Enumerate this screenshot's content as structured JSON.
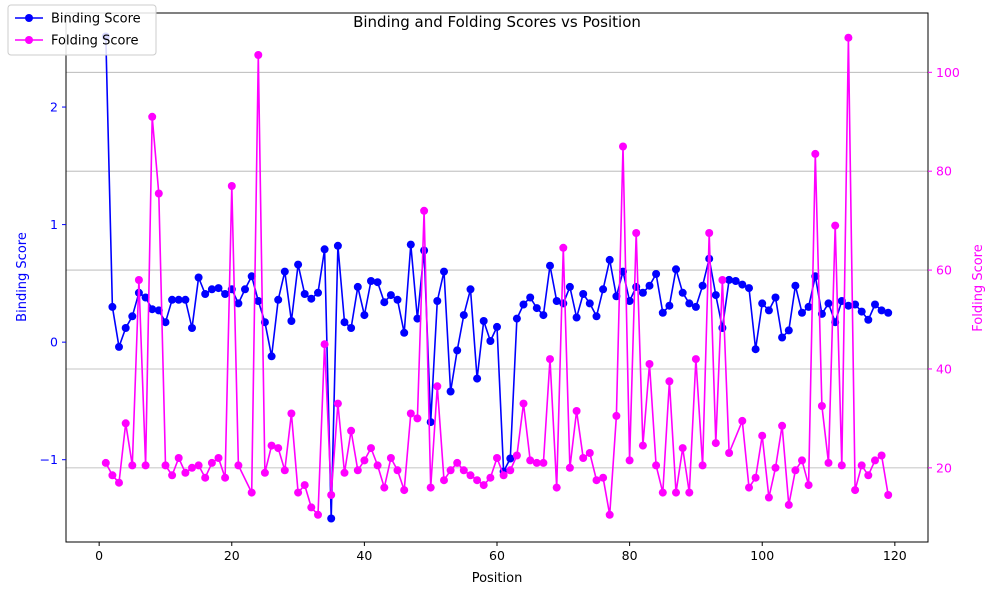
{
  "chart_data": {
    "type": "line",
    "title": "Binding and Folding Scores vs Position",
    "xlabel": "Position",
    "ylabel": "Binding Score",
    "y2label": "Folding Score",
    "xlim": [
      -5,
      125
    ],
    "ylim": [
      -1.7,
      2.8
    ],
    "y2lim": [
      5,
      112
    ],
    "xticks": [
      0,
      20,
      40,
      60,
      80,
      100,
      120
    ],
    "yticks": [
      -1,
      0,
      1,
      2
    ],
    "y2ticks": [
      20,
      40,
      60,
      80,
      100
    ],
    "grid": "horizontal lines at right-axis ticks",
    "legend": "top-left",
    "x": [
      1,
      2,
      3,
      4,
      5,
      6,
      7,
      8,
      9,
      10,
      11,
      12,
      13,
      14,
      15,
      16,
      17,
      18,
      19,
      20,
      21,
      22,
      23,
      24,
      25,
      26,
      27,
      28,
      29,
      30,
      31,
      32,
      33,
      34,
      35,
      36,
      37,
      38,
      39,
      40,
      41,
      42,
      43,
      44,
      45,
      46,
      47,
      48,
      49,
      50,
      51,
      52,
      53,
      54,
      55,
      56,
      57,
      58,
      59,
      60,
      61,
      62,
      63,
      64,
      65,
      66,
      67,
      68,
      69,
      70,
      71,
      72,
      73,
      74,
      75,
      76,
      77,
      78,
      79,
      80,
      81,
      82,
      83,
      84,
      85,
      86,
      87,
      88,
      89,
      90,
      91,
      92,
      93,
      94,
      95,
      96,
      97,
      98,
      99,
      100,
      101,
      102,
      103,
      104,
      105,
      106,
      107,
      108,
      109,
      110,
      111,
      112,
      113,
      114,
      115,
      116,
      117,
      118,
      119
    ],
    "series": [
      {
        "name": "Binding Score",
        "axis": "left",
        "color": "#0000ff",
        "values": [
          2.6,
          0.3,
          -0.04,
          0.12,
          0.22,
          0.42,
          0.38,
          0.28,
          0.27,
          0.17,
          0.36,
          0.36,
          0.36,
          0.12,
          0.55,
          0.41,
          0.45,
          0.46,
          0.41,
          0.45,
          0.33,
          0.45,
          0.56,
          0.35,
          0.17,
          -0.12,
          0.36,
          0.6,
          0.18,
          0.66,
          0.41,
          0.37,
          0.42,
          0.79,
          -1.5,
          0.82,
          0.17,
          0.12,
          0.47,
          0.23,
          0.52,
          0.51,
          0.34,
          0.4,
          0.36,
          0.08,
          0.83,
          0.2,
          0.78,
          -0.68,
          0.35,
          0.6,
          -0.42,
          -0.07,
          0.23,
          0.45,
          -0.31,
          0.18,
          0.01,
          0.13,
          -1.1,
          -0.99,
          0.2,
          0.32,
          0.38,
          0.29,
          0.23,
          0.65,
          0.35,
          0.33,
          0.47,
          0.21,
          0.41,
          0.33,
          0.22,
          0.45,
          0.7,
          0.39,
          0.6,
          0.35,
          0.47,
          0.42,
          0.48,
          0.58,
          0.25,
          0.31,
          0.62,
          0.42,
          0.33,
          0.3,
          0.48,
          0.71,
          0.4,
          0.12,
          0.53,
          0.52,
          0.49,
          0.46,
          -0.06,
          0.33,
          0.27,
          0.38,
          0.04,
          0.1,
          0.48,
          0.25,
          0.3,
          0.56,
          0.24,
          0.33,
          0.17,
          0.35,
          0.31,
          0.32,
          0.26,
          0.19,
          0.32,
          0.27,
          0.25
        ]
      },
      {
        "name": "Folding Score",
        "axis": "right",
        "color": "#ff00ff",
        "values": [
          21,
          18.5,
          17,
          29,
          20.5,
          58,
          20.5,
          91,
          75.5,
          20.5,
          18.5,
          22,
          19,
          20,
          20.5,
          18,
          21,
          22,
          18,
          77,
          20.5,
          null,
          15,
          103.5,
          19,
          24.5,
          24,
          19.5,
          31,
          15,
          16.5,
          12,
          10.5,
          45,
          14.5,
          33,
          19,
          27.5,
          19.5,
          21.5,
          24,
          20.5,
          16,
          22,
          19.5,
          15.5,
          31,
          30,
          72,
          16,
          36.5,
          17.5,
          19.5,
          21,
          19.5,
          18.5,
          17.5,
          16.5,
          18,
          22,
          18.5,
          19.5,
          22.5,
          33,
          21.5,
          21,
          21,
          42,
          16,
          64.5,
          20,
          31.5,
          22,
          23,
          17.5,
          18,
          10.5,
          30.5,
          85,
          21.5,
          67.5,
          24.5,
          41,
          20.5,
          15,
          37.5,
          15,
          24,
          15,
          42,
          20.5,
          67.5,
          25,
          58,
          23,
          null,
          29.5,
          16,
          18,
          26.5,
          14,
          20,
          28.5,
          12.5,
          19.5,
          21.5,
          16.5,
          83.5,
          32.5,
          21,
          69,
          20.5,
          107,
          15.5,
          20.5,
          18.5,
          21.5,
          22.5,
          14.5
        ]
      }
    ]
  }
}
